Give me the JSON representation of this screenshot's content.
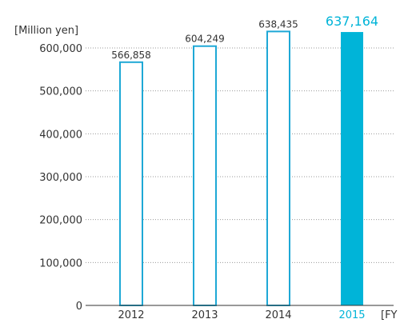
{
  "chart_data": {
    "type": "bar",
    "ylabel": "[Million yen]",
    "xlabel": "[FY",
    "categories": [
      "2012",
      "2013",
      "2014",
      "2015"
    ],
    "values": [
      566858,
      604249,
      638435,
      637164
    ],
    "value_labels": [
      "566,858",
      "604,249",
      "638,435",
      "637,164"
    ],
    "ylim": [
      0,
      600000
    ],
    "yticks": [
      0,
      100000,
      200000,
      300000,
      400000,
      500000,
      600000
    ],
    "ytick_labels": [
      "0",
      "100,000",
      "200,000",
      "300,000",
      "400,000",
      "500,000",
      "600,000"
    ],
    "grid": true,
    "highlight_index": 3
  },
  "colors": {
    "accent": "#00b4d8",
    "bar_outline": "#1ea8d6",
    "text": "#333333",
    "grid": "#9a9a9a",
    "axis": "#333333"
  }
}
